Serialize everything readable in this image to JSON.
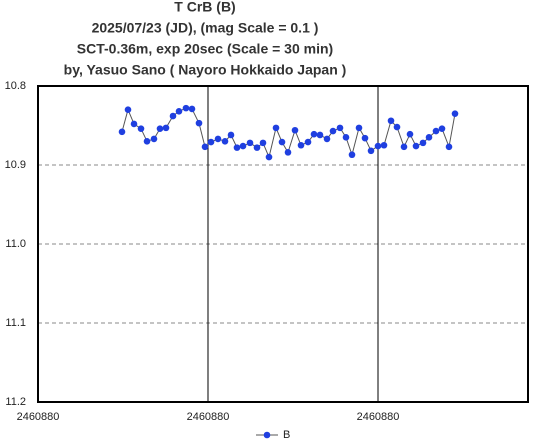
{
  "chart_data": {
    "type": "line",
    "title": [
      "T CrB  (B)",
      "2025/07/23 (JD),   (mag Scale = 0.1 )",
      "SCT-0.36m, exp 20sec (Scale = 30 min)",
      "by, Yasuo Sano ( Nayoro Hokkaido Japan )"
    ],
    "x": [
      2460880.010294,
      2460880.011029,
      2460880.011765,
      2460880.012623,
      2460880.013358,
      2460880.014216,
      2460880.014951,
      2460880.015686,
      2460880.016544,
      2460880.017279,
      2460880.018137,
      2460880.018873,
      2460880.01973,
      2460880.020466,
      2460880.021201,
      2460880.022059,
      2460880.022917,
      2460880.023652,
      2460880.024387,
      2460880.025123,
      2460880.02598,
      2460880.026838,
      2460880.027574,
      2460880.028309,
      2460880.029167,
      2460880.029902,
      2460880.030637,
      2460880.031495,
      2460880.03223,
      2460880.033088,
      2460880.033824,
      2460880.034559,
      2460880.035417,
      2460880.036152,
      2460880.03701,
      2460880.037745,
      2460880.03848,
      2460880.039338,
      2460880.040074,
      2460880.040809,
      2460880.041667,
      2460880.042402,
      2460880.04326,
      2460880.043995,
      2460880.044853,
      2460880.045588,
      2460880.046324,
      2460880.047181,
      2460880.047917,
      2460880.048775,
      2460880.04951,
      2460880.050368,
      2460880.051103
    ],
    "series": [
      {
        "name": "B",
        "color": "#1f3fe0",
        "values": [
          10.858,
          10.83,
          10.848,
          10.854,
          10.87,
          10.867,
          10.854,
          10.853,
          10.838,
          10.832,
          10.828,
          10.829,
          10.847,
          10.877,
          10.871,
          10.867,
          10.87,
          10.862,
          10.878,
          10.876,
          10.872,
          10.878,
          10.872,
          10.89,
          10.853,
          10.871,
          10.884,
          10.856,
          10.875,
          10.871,
          10.861,
          10.862,
          10.867,
          10.857,
          10.853,
          10.865,
          10.887,
          10.853,
          10.866,
          10.882,
          10.876,
          10.875,
          10.844,
          10.852,
          10.877,
          10.861,
          10.876,
          10.872,
          10.865,
          10.857,
          10.854,
          10.877,
          10.835
        ]
      }
    ],
    "xlim": [
      2460880,
      2460880.060049
    ],
    "xticks": [
      {
        "value": 2460880,
        "label": "2460880"
      },
      {
        "value": 2460880.020833,
        "label": "2460880"
      },
      {
        "value": 2460880.041667,
        "label": "2460880"
      }
    ],
    "ylim": [
      10.8,
      11.2
    ],
    "yticks": [
      10.8,
      10.9,
      {
        "value": 11,
        "label": "11.0"
      },
      11.1,
      11.2
    ],
    "y_inverted": true,
    "grid": true,
    "legend": "bottom"
  }
}
